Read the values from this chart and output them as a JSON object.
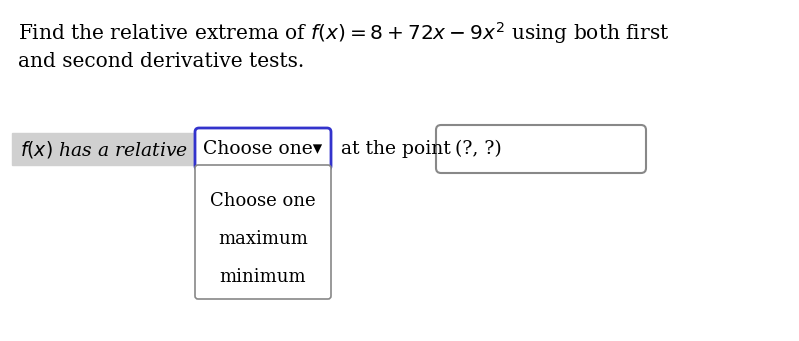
{
  "title_line1": "Find the relative extrema of $f(x) = 8 + 72x - 9x^2$ using both first",
  "title_line2": "and second derivative tests.",
  "label_text": "$f(x)$ has a relative",
  "dropdown_text": "Choose one▾",
  "at_point_text": "at the point",
  "point_text": "(?, ?)",
  "dropdown_items": [
    "Choose one",
    "maximum",
    "minimum"
  ],
  "bg_color": "#ffffff",
  "label_bg": "#d0d0d0",
  "dropdown_border_color": "#3333cc",
  "point_box_border_color": "#888888",
  "menu_border_color": "#888888",
  "font_size_title": 14.5,
  "font_size_body": 13.5,
  "font_size_menu": 13.0
}
